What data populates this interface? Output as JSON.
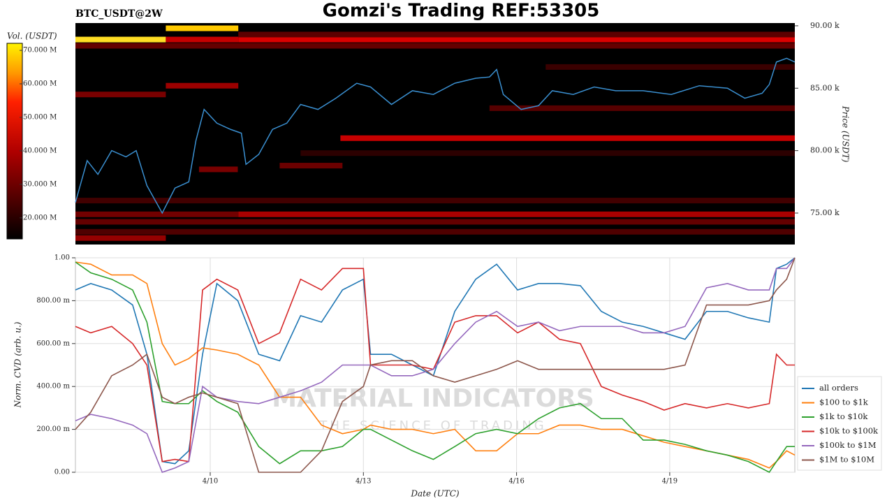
{
  "chart_data": [
    {
      "type": "heatmap",
      "title": "Gomzi's Trading REF:53305",
      "subtitle": "BTC_USDT@2W",
      "colorbar_label": "Vol. (USDT)",
      "ylabel": "Price (USDT)",
      "xlim": [
        7.36,
        21.45
      ],
      "ylim": [
        72480,
        90220
      ],
      "yticks": [
        {
          "value": 75000,
          "label": "75.00 k"
        },
        {
          "value": 80000,
          "label": "80.00 k"
        },
        {
          "value": 85000,
          "label": "85.00 k"
        },
        {
          "value": 90000,
          "label": "90.00 k"
        }
      ],
      "zlim": [
        13700000,
        72100000
      ],
      "zticks": [
        {
          "value": 20000000,
          "label": "20.000 M"
        },
        {
          "value": 30000000,
          "label": "30.000 M"
        },
        {
          "value": 40000000,
          "label": "40.000 M"
        },
        {
          "value": 50000000,
          "label": "50.000 M"
        },
        {
          "value": 60000000,
          "label": "60.000 M"
        },
        {
          "value": 70000000,
          "label": "70.000 M"
        }
      ],
      "bands": [
        {
          "price": 88900,
          "x0": 7.36,
          "x1": 9.13,
          "volume": 70000000
        },
        {
          "price": 88900,
          "x0": 10.55,
          "x1": 21.45,
          "volume": 45000000
        },
        {
          "price": 88900,
          "x0": 9.13,
          "x1": 10.55,
          "volume": 42000000
        },
        {
          "price": 89800,
          "x0": 9.13,
          "x1": 10.55,
          "volume": 68000000
        },
        {
          "price": 89300,
          "x0": 10.55,
          "x1": 21.45,
          "volume": 27000000
        },
        {
          "price": 88400,
          "x0": 7.36,
          "x1": 21.45,
          "volume": 28000000
        },
        {
          "price": 86700,
          "x0": 16.57,
          "x1": 21.45,
          "volume": 22000000
        },
        {
          "price": 85200,
          "x0": 9.13,
          "x1": 10.55,
          "volume": 36000000
        },
        {
          "price": 84500,
          "x0": 7.36,
          "x1": 9.13,
          "volume": 31000000
        },
        {
          "price": 83400,
          "x0": 15.47,
          "x1": 21.45,
          "volume": 26000000
        },
        {
          "price": 81000,
          "x0": 12.55,
          "x1": 21.45,
          "volume": 42000000
        },
        {
          "price": 79800,
          "x0": 11.77,
          "x1": 21.45,
          "volume": 20000000
        },
        {
          "price": 78800,
          "x0": 11.36,
          "x1": 12.59,
          "volume": 29000000
        },
        {
          "price": 78500,
          "x0": 9.78,
          "x1": 10.54,
          "volume": 31000000
        },
        {
          "price": 76000,
          "x0": 7.36,
          "x1": 21.45,
          "volume": 23000000
        },
        {
          "price": 74900,
          "x0": 10.55,
          "x1": 21.45,
          "volume": 38000000
        },
        {
          "price": 74900,
          "x0": 7.36,
          "x1": 10.55,
          "volume": 30000000
        },
        {
          "price": 74300,
          "x0": 7.36,
          "x1": 21.45,
          "volume": 28000000
        },
        {
          "price": 73500,
          "x0": 7.36,
          "x1": 21.45,
          "volume": 25000000
        },
        {
          "price": 73000,
          "x0": 7.36,
          "x1": 9.13,
          "volume": 35000000
        }
      ],
      "price": {
        "color": "#3a8fd0",
        "x": [
          7.36,
          7.59,
          7.8,
          8.07,
          8.35,
          8.55,
          8.76,
          9.06,
          9.31,
          9.58,
          9.72,
          9.88,
          10.13,
          10.4,
          10.61,
          10.7,
          10.95,
          11.22,
          11.5,
          11.77,
          12.11,
          12.46,
          12.87,
          13.14,
          13.55,
          13.96,
          14.37,
          14.79,
          15.2,
          15.47,
          15.61,
          15.74,
          16.09,
          16.43,
          16.7,
          17.11,
          17.52,
          17.94,
          18.48,
          19.03,
          19.58,
          20.13,
          20.47,
          20.81,
          20.95,
          21.09,
          21.29,
          21.45
        ],
        "values": [
          75850,
          79200,
          78100,
          80000,
          79500,
          80000,
          77200,
          75000,
          77000,
          77500,
          80800,
          83300,
          82200,
          81700,
          81400,
          78900,
          79700,
          81700,
          82200,
          83700,
          83300,
          84200,
          85400,
          85100,
          83700,
          84800,
          84500,
          85400,
          85800,
          85900,
          86500,
          84500,
          83300,
          83600,
          84800,
          84500,
          85100,
          84800,
          84800,
          84500,
          85200,
          85000,
          84200,
          84600,
          85300,
          87100,
          87400,
          87100
        ]
      }
    },
    {
      "type": "line",
      "xlabel": "Date (UTC)",
      "ylabel": "Norm. CVD (arb. u.)",
      "watermark": "MATERIAL INDICATORS",
      "watermark_tagline": "THE SCIENCE OF TRADING",
      "grid": true,
      "legend": "right",
      "xlim": [
        7.36,
        21.45
      ],
      "xticks": [
        {
          "value": 10,
          "label": "4/10"
        },
        {
          "value": 13,
          "label": "4/13"
        },
        {
          "value": 16,
          "label": "4/16"
        },
        {
          "value": 19,
          "label": "4/19"
        }
      ],
      "ylim": [
        0,
        1
      ],
      "yticks": [
        {
          "value": 0,
          "label": "0.00"
        },
        {
          "value": 0.2,
          "label": "200.00 m"
        },
        {
          "value": 0.4,
          "label": "400.00 m"
        },
        {
          "value": 0.6,
          "label": "600.00 m"
        },
        {
          "value": 0.8,
          "label": "800.00 m"
        },
        {
          "value": 1,
          "label": "1.00"
        }
      ],
      "x": [
        7.36,
        7.66,
        8.07,
        8.48,
        8.76,
        9.06,
        9.31,
        9.58,
        9.85,
        10.13,
        10.54,
        10.95,
        11.36,
        11.77,
        12.18,
        12.59,
        13.0,
        13.14,
        13.55,
        13.96,
        14.37,
        14.79,
        15.2,
        15.61,
        16.02,
        16.43,
        16.84,
        17.25,
        17.66,
        18.07,
        18.48,
        18.89,
        19.3,
        19.72,
        20.13,
        20.54,
        20.95,
        21.09,
        21.29,
        21.45
      ],
      "series": [
        {
          "name": "all orders",
          "color": "#1f77b4",
          "values": [
            0.85,
            0.88,
            0.85,
            0.78,
            0.55,
            0.05,
            0.04,
            0.1,
            0.55,
            0.88,
            0.8,
            0.55,
            0.52,
            0.73,
            0.7,
            0.85,
            0.9,
            0.55,
            0.55,
            0.5,
            0.45,
            0.75,
            0.9,
            0.97,
            0.85,
            0.88,
            0.88,
            0.87,
            0.75,
            0.7,
            0.68,
            0.65,
            0.62,
            0.75,
            0.75,
            0.72,
            0.7,
            0.95,
            0.97,
            1.0
          ]
        },
        {
          "name": "$100 to $1k",
          "color": "#ff7f0e",
          "values": [
            0.98,
            0.97,
            0.92,
            0.92,
            0.88,
            0.6,
            0.5,
            0.53,
            0.58,
            0.57,
            0.55,
            0.5,
            0.35,
            0.35,
            0.22,
            0.18,
            0.2,
            0.22,
            0.2,
            0.2,
            0.18,
            0.2,
            0.1,
            0.1,
            0.18,
            0.18,
            0.22,
            0.22,
            0.2,
            0.2,
            0.17,
            0.14,
            0.12,
            0.1,
            0.08,
            0.06,
            0.02,
            0.05,
            0.1,
            0.08
          ]
        },
        {
          "name": "$1k to $10k",
          "color": "#2ca02c",
          "values": [
            0.98,
            0.93,
            0.9,
            0.85,
            0.7,
            0.33,
            0.32,
            0.32,
            0.38,
            0.33,
            0.28,
            0.12,
            0.04,
            0.1,
            0.1,
            0.12,
            0.2,
            0.2,
            0.15,
            0.1,
            0.06,
            0.12,
            0.18,
            0.2,
            0.18,
            0.25,
            0.3,
            0.32,
            0.25,
            0.25,
            0.15,
            0.15,
            0.13,
            0.1,
            0.08,
            0.05,
            0.0,
            0.05,
            0.12,
            0.12
          ]
        },
        {
          "name": "$10k to $100k",
          "color": "#d62728",
          "values": [
            0.68,
            0.65,
            0.68,
            0.6,
            0.5,
            0.05,
            0.06,
            0.05,
            0.85,
            0.9,
            0.85,
            0.6,
            0.65,
            0.9,
            0.85,
            0.95,
            0.95,
            0.5,
            0.5,
            0.5,
            0.48,
            0.7,
            0.73,
            0.73,
            0.65,
            0.7,
            0.62,
            0.6,
            0.4,
            0.36,
            0.33,
            0.29,
            0.32,
            0.3,
            0.32,
            0.3,
            0.32,
            0.55,
            0.5,
            0.5
          ]
        },
        {
          "name": "$100k to $1M",
          "color": "#9467bd",
          "values": [
            0.24,
            0.27,
            0.25,
            0.22,
            0.18,
            0.0,
            0.02,
            0.05,
            0.4,
            0.35,
            0.33,
            0.32,
            0.35,
            0.38,
            0.42,
            0.5,
            0.5,
            0.5,
            0.45,
            0.45,
            0.48,
            0.6,
            0.7,
            0.75,
            0.68,
            0.7,
            0.66,
            0.68,
            0.68,
            0.68,
            0.65,
            0.65,
            0.68,
            0.86,
            0.88,
            0.85,
            0.85,
            0.95,
            0.95,
            1.0
          ]
        },
        {
          "name": "$1M to $10M",
          "color": "#8c564b",
          "values": [
            0.2,
            0.28,
            0.45,
            0.5,
            0.55,
            0.35,
            0.32,
            0.35,
            0.37,
            0.35,
            0.32,
            0.0,
            0.0,
            0.0,
            0.1,
            0.33,
            0.4,
            0.5,
            0.52,
            0.52,
            0.45,
            0.42,
            0.45,
            0.48,
            0.52,
            0.48,
            0.48,
            0.48,
            0.48,
            0.48,
            0.48,
            0.48,
            0.5,
            0.78,
            0.78,
            0.78,
            0.8,
            0.85,
            0.9,
            1.0
          ]
        }
      ]
    }
  ]
}
